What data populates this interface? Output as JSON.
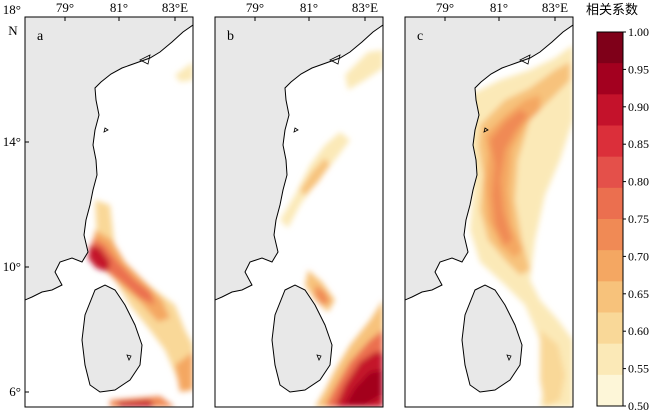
{
  "figure": {
    "x_ticks": [
      "79°",
      "81°",
      "83°E"
    ],
    "y_ticks": [
      "18°",
      "14°",
      "10°",
      "6°"
    ],
    "y_unit": "N",
    "panels": [
      {
        "label": "a"
      },
      {
        "label": "b"
      },
      {
        "label": "c"
      }
    ]
  },
  "colorbar": {
    "title": "相关系数",
    "labels": [
      "1.00",
      "0.95",
      "0.90",
      "0.85",
      "0.80",
      "0.75",
      "0.70",
      "0.65",
      "0.60",
      "0.55",
      "0.50"
    ],
    "colors": [
      "#7f0019",
      "#a3001f",
      "#c4122b",
      "#db2f3a",
      "#e4504a",
      "#eb6f4f",
      "#f08a55",
      "#f4a762",
      "#f7c27b",
      "#f9d898",
      "#fbe9b7",
      "#fdf6d8"
    ]
  },
  "colors": {
    "land": "#e8e8e8",
    "coastline": "#000000",
    "frame": "#000000"
  }
}
